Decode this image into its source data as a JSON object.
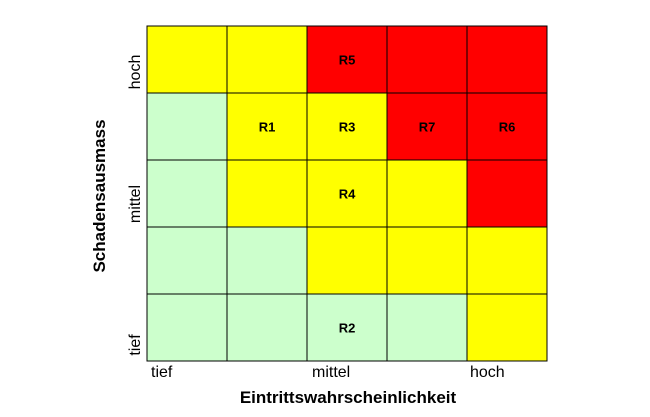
{
  "chart_data": {
    "type": "heatmap",
    "xlabel": "Eintrittswahrscheinlichkeit",
    "ylabel": "Schadensausmass",
    "x_tick_labels": [
      "tief",
      "mittel",
      "hoch"
    ],
    "y_tick_labels": [
      "hoch",
      "mittel",
      "tief"
    ],
    "n_cols": 5,
    "n_rows": 5,
    "colors": {
      "low": "#ccffcc",
      "medium": "#ffff00",
      "high": "#ff0000",
      "grid": "#000000"
    },
    "grid_rows_top_to_bottom": [
      [
        "medium",
        "medium",
        "high",
        "high",
        "high"
      ],
      [
        "low",
        "medium",
        "medium",
        "high",
        "high"
      ],
      [
        "low",
        "medium",
        "medium",
        "medium",
        "high"
      ],
      [
        "low",
        "low",
        "medium",
        "medium",
        "medium"
      ],
      [
        "low",
        "low",
        "low",
        "low",
        "medium"
      ]
    ],
    "risks": [
      {
        "label": "R5",
        "row": 0,
        "col": 2
      },
      {
        "label": "R1",
        "row": 1,
        "col": 1
      },
      {
        "label": "R3",
        "row": 1,
        "col": 2
      },
      {
        "label": "R7",
        "row": 1,
        "col": 3
      },
      {
        "label": "R6",
        "row": 1,
        "col": 4
      },
      {
        "label": "R4",
        "row": 2,
        "col": 2
      },
      {
        "label": "R2",
        "row": 4,
        "col": 2
      }
    ]
  }
}
